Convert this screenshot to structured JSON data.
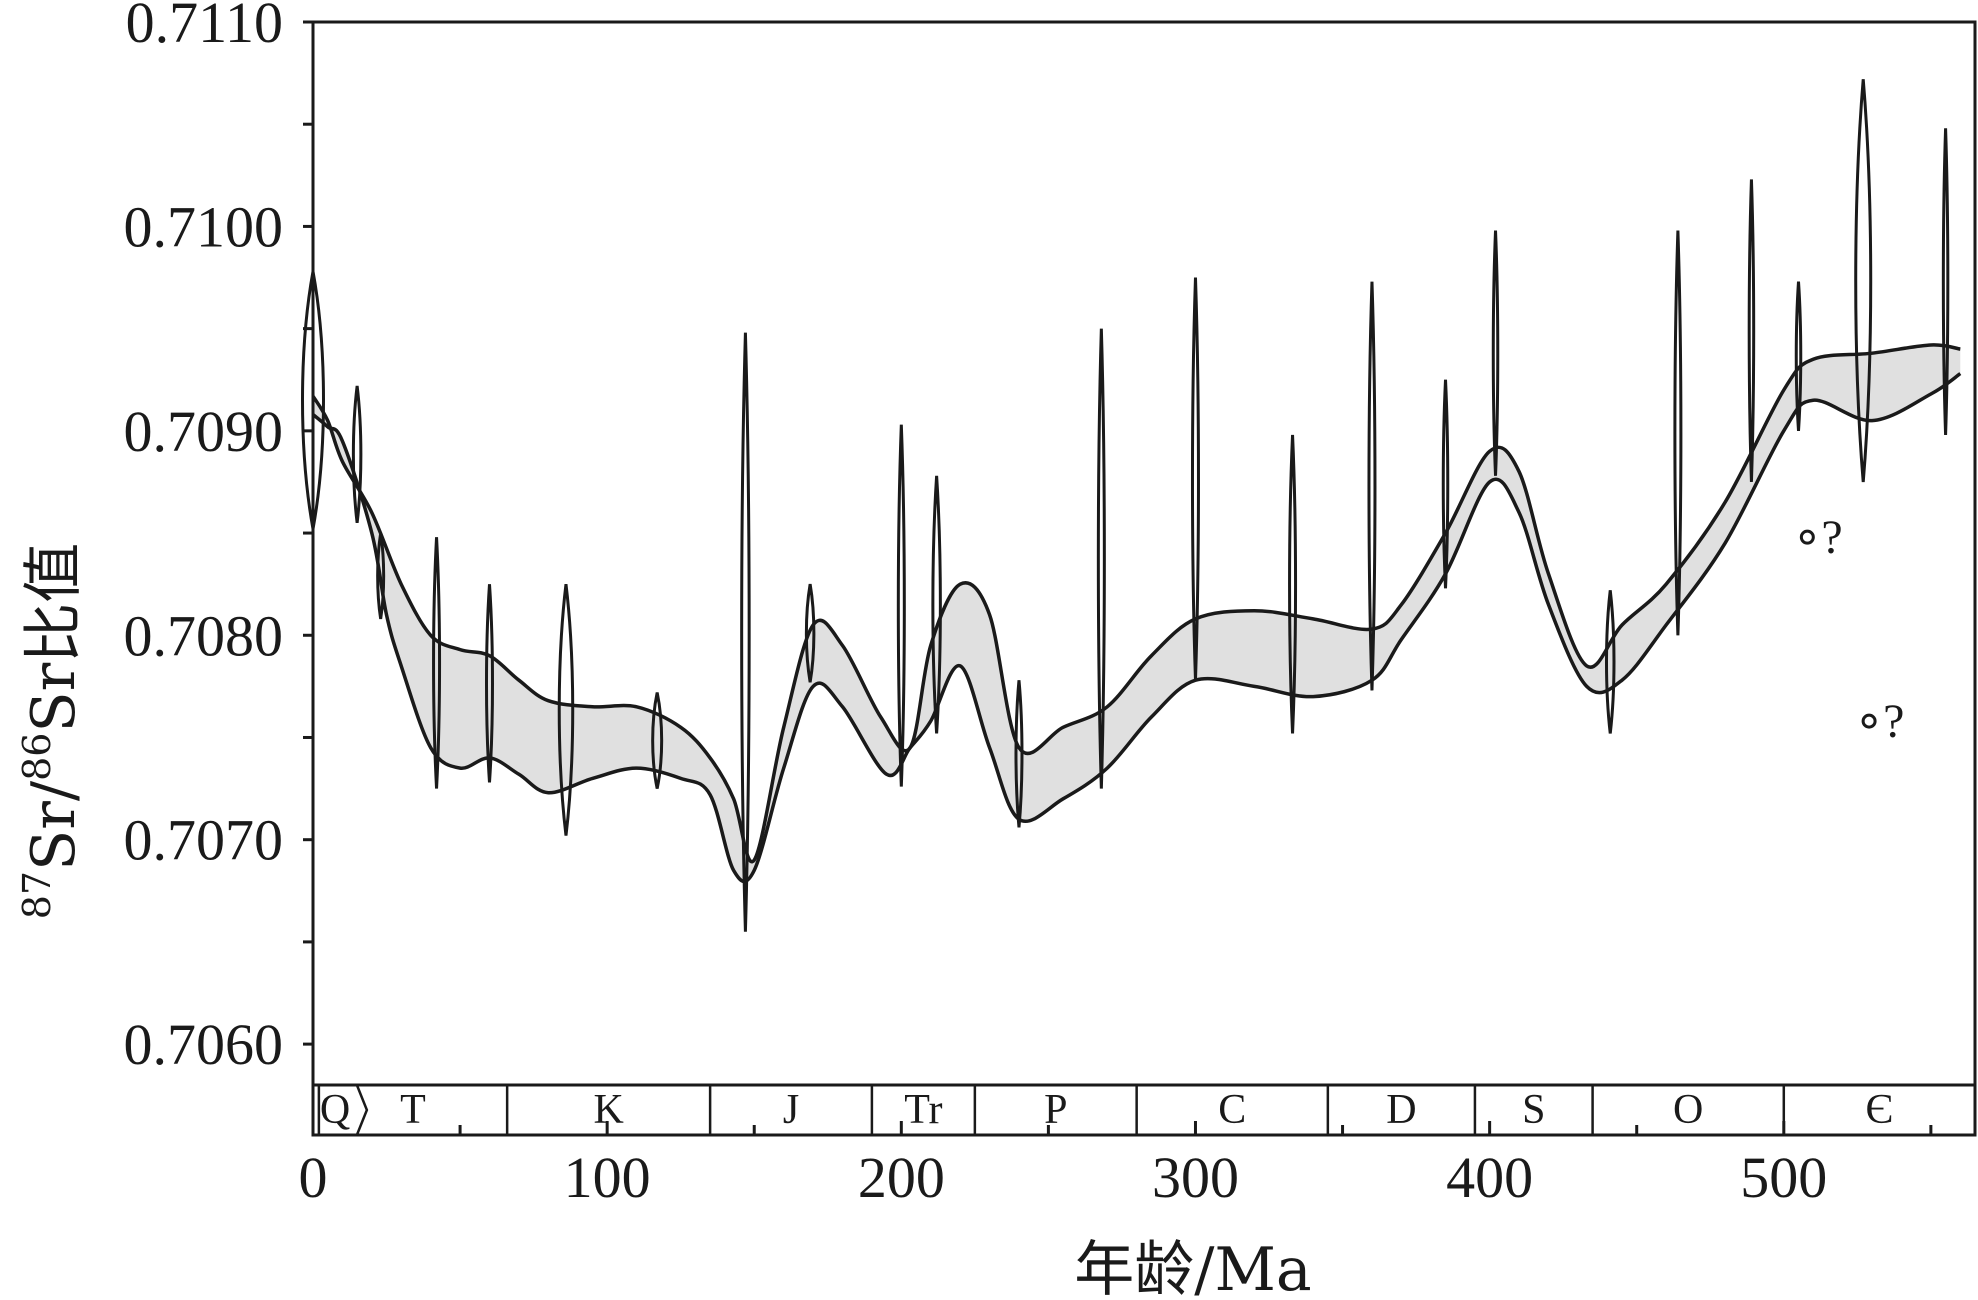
{
  "chart_data": {
    "type": "area",
    "xlabel": "年龄/Ma",
    "ylabel": {
      "sup1": "87",
      "part1": "Sr/",
      "sup2": "86",
      "part2": "Sr比值"
    },
    "xlim": [
      0,
      565
    ],
    "ylim": [
      0.7058,
      0.711
    ],
    "x_ticks": [
      0,
      100,
      200,
      300,
      400,
      500
    ],
    "y_ticks": [
      "0.7060",
      "0.7070",
      "0.7080",
      "0.7090",
      "0.7100",
      "0.7110"
    ],
    "fill_color": "#e0e0e0",
    "line_color": "#1a1a1a",
    "periods": [
      {
        "label": "Q",
        "start": 0,
        "end": 2
      },
      {
        "label": "T",
        "start": 2,
        "end": 66
      },
      {
        "label": "K",
        "start": 66,
        "end": 135
      },
      {
        "label": "J",
        "start": 135,
        "end": 190
      },
      {
        "label": "Tr",
        "start": 190,
        "end": 225
      },
      {
        "label": "P",
        "start": 225,
        "end": 280
      },
      {
        "label": "C",
        "start": 280,
        "end": 345
      },
      {
        "label": "D",
        "start": 345,
        "end": 395
      },
      {
        "label": "S",
        "start": 395,
        "end": 435
      },
      {
        "label": "O",
        "start": 435,
        "end": 500
      },
      {
        "label": "Є",
        "start": 500,
        "end": 565
      }
    ],
    "series": [
      {
        "role": "upper",
        "points": [
          [
            0,
            0.70917
          ],
          [
            5,
            0.70905
          ],
          [
            10,
            0.70885
          ],
          [
            20,
            0.7086
          ],
          [
            30,
            0.70825
          ],
          [
            40,
            0.708
          ],
          [
            50,
            0.70793
          ],
          [
            60,
            0.7079
          ],
          [
            70,
            0.70778
          ],
          [
            80,
            0.70768
          ],
          [
            95,
            0.70765
          ],
          [
            110,
            0.70765
          ],
          [
            125,
            0.70755
          ],
          [
            135,
            0.7074
          ],
          [
            143,
            0.7072
          ],
          [
            150,
            0.7069
          ],
          [
            160,
            0.70755
          ],
          [
            170,
            0.70805
          ],
          [
            180,
            0.70795
          ],
          [
            193,
            0.7076
          ],
          [
            203,
            0.70745
          ],
          [
            210,
            0.70795
          ],
          [
            220,
            0.70825
          ],
          [
            230,
            0.7081
          ],
          [
            240,
            0.70745
          ],
          [
            255,
            0.70755
          ],
          [
            270,
            0.70765
          ],
          [
            285,
            0.7079
          ],
          [
            300,
            0.70808
          ],
          [
            320,
            0.70812
          ],
          [
            340,
            0.70808
          ],
          [
            360,
            0.70803
          ],
          [
            370,
            0.70815
          ],
          [
            385,
            0.7085
          ],
          [
            400,
            0.7089
          ],
          [
            410,
            0.7088
          ],
          [
            420,
            0.7083
          ],
          [
            433,
            0.70785
          ],
          [
            445,
            0.70805
          ],
          [
            460,
            0.70825
          ],
          [
            480,
            0.70865
          ],
          [
            500,
            0.7092
          ],
          [
            510,
            0.70935
          ],
          [
            530,
            0.70938
          ],
          [
            550,
            0.70942
          ],
          [
            560,
            0.7094
          ]
        ]
      },
      {
        "role": "lower",
        "points": [
          [
            0,
            0.70908
          ],
          [
            5,
            0.70902
          ],
          [
            10,
            0.70895
          ],
          [
            20,
            0.7085
          ],
          [
            25,
            0.7081
          ],
          [
            30,
            0.70785
          ],
          [
            40,
            0.70745
          ],
          [
            50,
            0.70735
          ],
          [
            60,
            0.7074
          ],
          [
            70,
            0.70732
          ],
          [
            80,
            0.70723
          ],
          [
            95,
            0.7073
          ],
          [
            110,
            0.70735
          ],
          [
            125,
            0.7073
          ],
          [
            135,
            0.70722
          ],
          [
            143,
            0.70685
          ],
          [
            150,
            0.70685
          ],
          [
            160,
            0.70735
          ],
          [
            170,
            0.70775
          ],
          [
            180,
            0.70765
          ],
          [
            195,
            0.70732
          ],
          [
            203,
            0.70745
          ],
          [
            210,
            0.70758
          ],
          [
            220,
            0.70785
          ],
          [
            230,
            0.70745
          ],
          [
            240,
            0.7071
          ],
          [
            255,
            0.7072
          ],
          [
            270,
            0.70735
          ],
          [
            285,
            0.7076
          ],
          [
            300,
            0.70778
          ],
          [
            320,
            0.70775
          ],
          [
            340,
            0.7077
          ],
          [
            360,
            0.70778
          ],
          [
            370,
            0.70798
          ],
          [
            385,
            0.7083
          ],
          [
            400,
            0.70875
          ],
          [
            410,
            0.7086
          ],
          [
            420,
            0.70815
          ],
          [
            433,
            0.70775
          ],
          [
            445,
            0.70778
          ],
          [
            460,
            0.70805
          ],
          [
            480,
            0.70845
          ],
          [
            500,
            0.709
          ],
          [
            510,
            0.70915
          ],
          [
            530,
            0.70905
          ],
          [
            550,
            0.70918
          ],
          [
            560,
            0.70928
          ]
        ]
      }
    ],
    "spikes": [
      {
        "x": 0,
        "min": 0.70852,
        "max": 0.70978,
        "w": 14
      },
      {
        "x": 15,
        "min": 0.70855,
        "max": 0.70922,
        "w": 5
      },
      {
        "x": 23,
        "min": 0.70808,
        "max": 0.7085,
        "w": 4
      },
      {
        "x": 42,
        "min": 0.70725,
        "max": 0.70848,
        "w": 4
      },
      {
        "x": 60,
        "min": 0.70728,
        "max": 0.70825,
        "w": 4
      },
      {
        "x": 86,
        "min": 0.70702,
        "max": 0.70825,
        "w": 9
      },
      {
        "x": 117,
        "min": 0.70725,
        "max": 0.70772,
        "w": 6
      },
      {
        "x": 147,
        "min": 0.70655,
        "max": 0.70948,
        "w": 5
      },
      {
        "x": 169,
        "min": 0.70777,
        "max": 0.70825,
        "w": 5
      },
      {
        "x": 200,
        "min": 0.70726,
        "max": 0.70903,
        "w": 4
      },
      {
        "x": 212,
        "min": 0.70752,
        "max": 0.70878,
        "w": 5
      },
      {
        "x": 240,
        "min": 0.70706,
        "max": 0.70778,
        "w": 4
      },
      {
        "x": 268,
        "min": 0.70725,
        "max": 0.7095,
        "w": 4
      },
      {
        "x": 300,
        "min": 0.70778,
        "max": 0.70975,
        "w": 4
      },
      {
        "x": 333,
        "min": 0.70752,
        "max": 0.70898,
        "w": 4
      },
      {
        "x": 360,
        "min": 0.70773,
        "max": 0.70973,
        "w": 4
      },
      {
        "x": 385,
        "min": 0.70823,
        "max": 0.70925,
        "w": 3
      },
      {
        "x": 402,
        "min": 0.70878,
        "max": 0.70998,
        "w": 3
      },
      {
        "x": 441,
        "min": 0.70752,
        "max": 0.70822,
        "w": 5
      },
      {
        "x": 464,
        "min": 0.708,
        "max": 0.70998,
        "w": 4
      },
      {
        "x": 489,
        "min": 0.70875,
        "max": 0.71023,
        "w": 3
      },
      {
        "x": 505,
        "min": 0.709,
        "max": 0.70973,
        "w": 3
      },
      {
        "x": 527,
        "min": 0.70875,
        "max": 0.71072,
        "w": 10
      },
      {
        "x": 555,
        "min": 0.70898,
        "max": 0.71048,
        "w": 3
      }
    ],
    "question_points": [
      {
        "x": 508,
        "y": 0.70848,
        "label": "?"
      },
      {
        "x": 529,
        "y": 0.70758,
        "label": "?"
      }
    ]
  }
}
